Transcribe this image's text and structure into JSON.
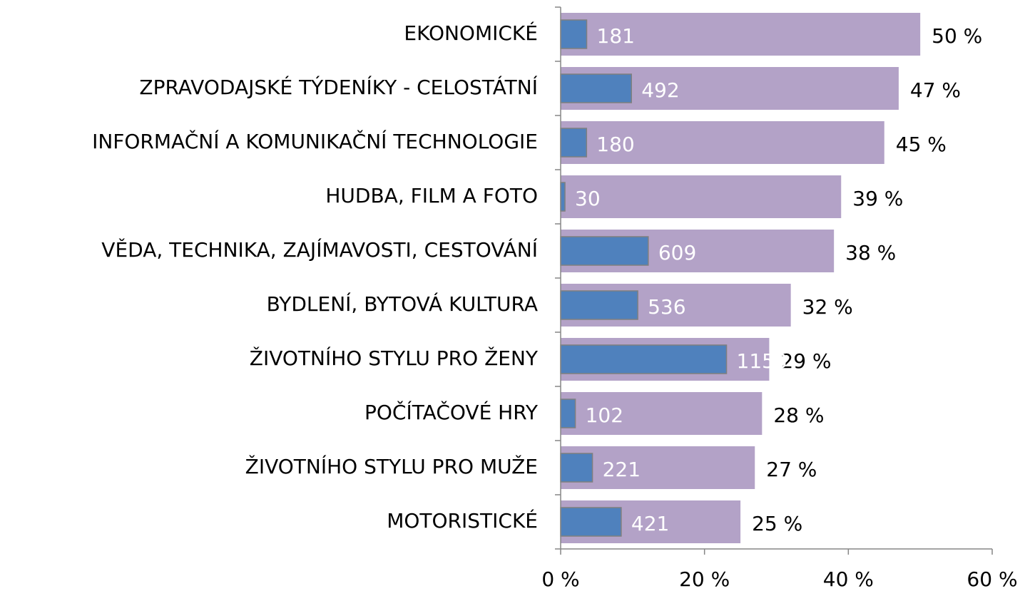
{
  "chart_data": {
    "type": "bar",
    "orientation": "horizontal",
    "categories": [
      "EKONOMICKÉ",
      "ZPRAVODAJSKÉ TÝDENÍKY - CELOSTÁTNÍ",
      "INFORMAČNÍ A KOMUNIKAČNÍ TECHNOLOGIE",
      "HUDBA, FILM A FOTO",
      "VĚDA, TECHNIKA, ZAJÍMAVOSTI, CESTOVÁNÍ",
      "BYDLENÍ, BYTOVÁ KULTURA",
      "ŽIVOTNÍHO STYLU PRO ŽENY",
      "POČÍTAČOVÉ HRY",
      "ŽIVOTNÍHO STYLU PRO MUŽE",
      "MOTORISTICKÉ"
    ],
    "series": [
      {
        "color": "#b3a2c7",
        "values": [
          50,
          47,
          45,
          39,
          38,
          32,
          29,
          28,
          27,
          25
        ],
        "value_labels": [
          "50 %",
          "47 %",
          "45 %",
          "39 %",
          "38 %",
          "32 %",
          "29 %",
          "28 %",
          "27 %",
          "25 %"
        ]
      },
      {
        "color": "#4f81bd",
        "axis": "x2",
        "values": [
          181,
          492,
          180,
          30,
          609,
          536,
          1153,
          102,
          221,
          421
        ]
      }
    ],
    "xlim": [
      0,
      60
    ],
    "xticks": [
      {
        "value": 0,
        "label": "0 %"
      },
      {
        "value": 20,
        "label": "20 %"
      },
      {
        "value": 40,
        "label": "40 %"
      },
      {
        "value": 60,
        "label": "60 %"
      }
    ],
    "x2lim": [
      0,
      3000
    ]
  }
}
